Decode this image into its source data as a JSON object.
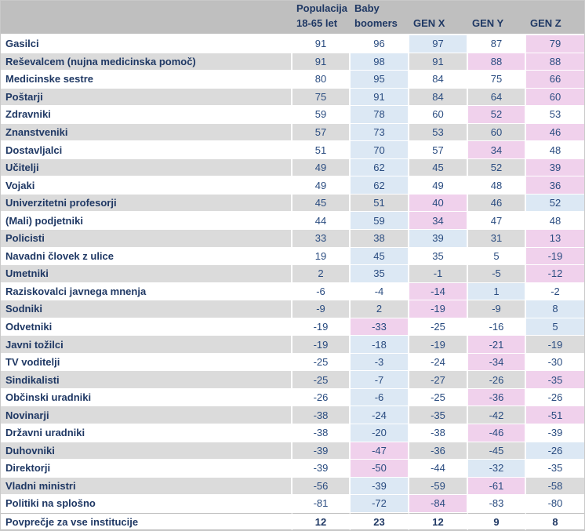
{
  "header": {
    "columns": [
      {
        "name": "populacija-18-65",
        "lines": [
          "Populacija",
          "18-65 let"
        ]
      },
      {
        "name": "baby-boomers",
        "lines": [
          "Baby",
          "boomers"
        ]
      },
      {
        "name": "gen-x",
        "lines": [
          "GEN X"
        ]
      },
      {
        "name": "gen-y",
        "lines": [
          "GEN Y"
        ]
      },
      {
        "name": "gen-z",
        "lines": [
          "GEN Z"
        ]
      }
    ]
  },
  "colors": {
    "header_bg": "#BFBFBF",
    "row_stripe_bg": "#DBDBDB",
    "row_white_bg": "#FFFFFF",
    "highlight_max_blue": "#DCE8F4",
    "highlight_min_pink": "#F0D1EC",
    "text_navy": "#1F3864",
    "value_navy": "#2A4C80"
  },
  "chart_data": {
    "type": "table",
    "columns": [
      "Populacija 18-65 let",
      "Baby boomers",
      "GEN X",
      "GEN Y",
      "GEN Z"
    ],
    "highlight_rule": {
      "blue_cells": "hi indices",
      "pink_cells": "lo indices"
    },
    "rows": [
      {
        "label": "Gasilci",
        "values": [
          91,
          96,
          97,
          87,
          79
        ],
        "hi": [
          2
        ],
        "lo": [
          4
        ]
      },
      {
        "label": "Reševalcem (nujna medicinska pomoč)",
        "values": [
          91,
          98,
          91,
          88,
          88
        ],
        "hi": [
          1
        ],
        "lo": [
          3,
          4
        ]
      },
      {
        "label": "Medicinske sestre",
        "values": [
          80,
          95,
          84,
          75,
          66
        ],
        "hi": [
          1
        ],
        "lo": [
          4
        ]
      },
      {
        "label": "Poštarji",
        "values": [
          75,
          91,
          84,
          64,
          60
        ],
        "hi": [
          1
        ],
        "lo": [
          4
        ]
      },
      {
        "label": "Zdravniki",
        "values": [
          59,
          78,
          60,
          52,
          53
        ],
        "hi": [
          1
        ],
        "lo": [
          3
        ]
      },
      {
        "label": "Znanstveniki",
        "values": [
          57,
          73,
          53,
          60,
          46
        ],
        "hi": [
          1
        ],
        "lo": [
          4
        ]
      },
      {
        "label": "Dostavljalci",
        "values": [
          51,
          70,
          57,
          34,
          48
        ],
        "hi": [
          1
        ],
        "lo": [
          3
        ]
      },
      {
        "label": "Učitelji",
        "values": [
          49,
          62,
          45,
          52,
          39
        ],
        "hi": [
          1
        ],
        "lo": [
          4
        ]
      },
      {
        "label": "Vojaki",
        "values": [
          49,
          62,
          49,
          48,
          36
        ],
        "hi": [
          1
        ],
        "lo": [
          4
        ]
      },
      {
        "label": "Univerzitetni profesorji",
        "values": [
          45,
          51,
          40,
          46,
          52
        ],
        "hi": [
          4
        ],
        "lo": [
          2
        ]
      },
      {
        "label": "(Mali) podjetniki",
        "values": [
          44,
          59,
          34,
          47,
          48
        ],
        "hi": [
          1
        ],
        "lo": [
          2
        ]
      },
      {
        "label": "Policisti",
        "values": [
          33,
          38,
          39,
          31,
          13
        ],
        "hi": [
          2
        ],
        "lo": [
          4
        ]
      },
      {
        "label": "Navadni človek z ulice",
        "values": [
          19,
          45,
          35,
          5,
          -19
        ],
        "hi": [
          1
        ],
        "lo": [
          4
        ]
      },
      {
        "label": "Umetniki",
        "values": [
          2,
          35,
          -1,
          -5,
          -12
        ],
        "hi": [
          1
        ],
        "lo": [
          4
        ]
      },
      {
        "label": "Raziskovalci javnega mnenja",
        "values": [
          -6,
          -4,
          -14,
          1,
          -2
        ],
        "hi": [
          3
        ],
        "lo": [
          2
        ]
      },
      {
        "label": "Sodniki",
        "values": [
          -9,
          2,
          -19,
          -9,
          8
        ],
        "hi": [
          4
        ],
        "lo": [
          2
        ]
      },
      {
        "label": "Odvetniki",
        "values": [
          -19,
          -33,
          -25,
          -16,
          5
        ],
        "hi": [
          4
        ],
        "lo": [
          1
        ]
      },
      {
        "label": "Javni tožilci",
        "values": [
          -19,
          -18,
          -19,
          -21,
          -19
        ],
        "hi": [
          1
        ],
        "lo": [
          3
        ]
      },
      {
        "label": "TV voditelji",
        "values": [
          -25,
          -3,
          -24,
          -34,
          -30
        ],
        "hi": [
          1
        ],
        "lo": [
          3
        ]
      },
      {
        "label": "Sindikalisti",
        "values": [
          -25,
          -7,
          -27,
          -26,
          -35
        ],
        "hi": [
          1
        ],
        "lo": [
          4
        ]
      },
      {
        "label": "Občinski uradniki",
        "values": [
          -26,
          -6,
          -25,
          -36,
          -26
        ],
        "hi": [
          1
        ],
        "lo": [
          3
        ]
      },
      {
        "label": "Novinarji",
        "values": [
          -38,
          -24,
          -35,
          -42,
          -51
        ],
        "hi": [
          1
        ],
        "lo": [
          4
        ]
      },
      {
        "label": "Državni uradniki",
        "values": [
          -38,
          -20,
          -38,
          -46,
          -39
        ],
        "hi": [
          1
        ],
        "lo": [
          3
        ]
      },
      {
        "label": "Duhovniki",
        "values": [
          -39,
          -47,
          -36,
          -45,
          -26
        ],
        "hi": [
          4
        ],
        "lo": [
          1
        ]
      },
      {
        "label": "Direktorji",
        "values": [
          -39,
          -50,
          -44,
          -32,
          -35
        ],
        "hi": [
          3
        ],
        "lo": [
          1
        ]
      },
      {
        "label": "Vladni ministri",
        "values": [
          -56,
          -39,
          -59,
          -61,
          -58
        ],
        "hi": [
          1
        ],
        "lo": [
          3
        ]
      },
      {
        "label": "Politiki na splošno",
        "values": [
          -81,
          -72,
          -84,
          -83,
          -80
        ],
        "hi": [
          1
        ],
        "lo": [
          2
        ]
      }
    ],
    "summary_row": {
      "label": "Povprečje za vse institucije",
      "values": [
        12,
        23,
        12,
        9,
        8
      ]
    }
  }
}
